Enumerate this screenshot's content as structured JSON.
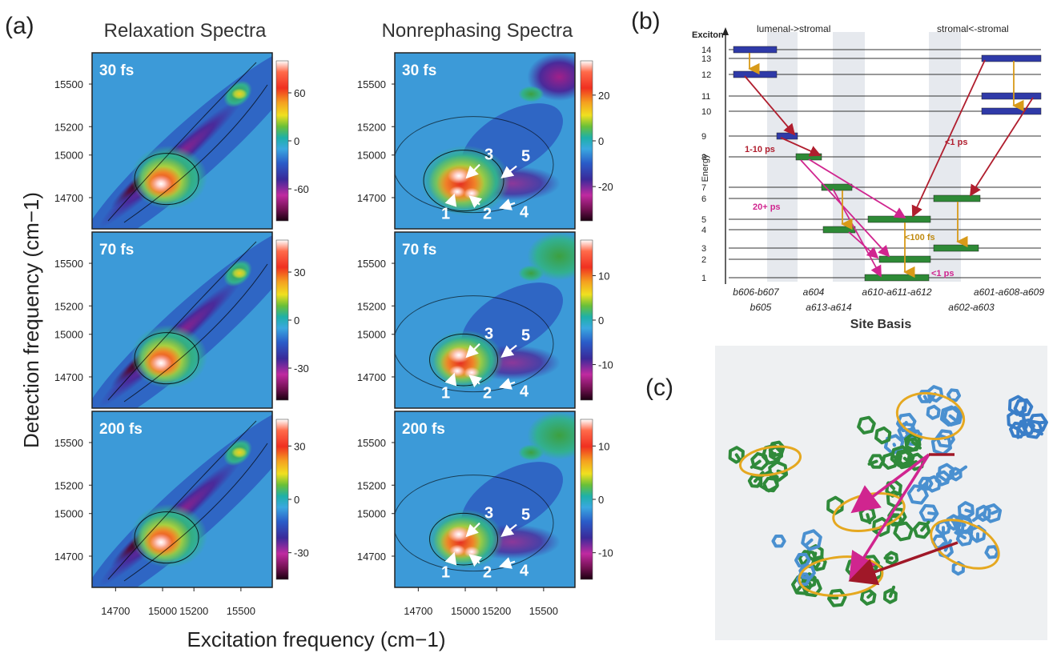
{
  "figure": {
    "panel_a_label": "(a)",
    "panel_b_label": "(b)",
    "panel_c_label": "(c)"
  },
  "chart_data": [
    {
      "type": "heatmap",
      "id": "relaxation",
      "title": "Relaxation Spectra",
      "xlabel": "Excitation frequency (cm−1)",
      "ylabel": "Detection frequency (cm−1)",
      "xlim": [
        14550,
        15700
      ],
      "ylim": [
        14480,
        15720
      ],
      "x_ticks": [
        14700,
        15000,
        15200,
        15500
      ],
      "y_ticks": [
        14700,
        15000,
        15200,
        15500
      ],
      "panels": [
        {
          "time": "30 fs",
          "colorbar_ticks": [
            "60",
            "0",
            "-60"
          ],
          "colorbar_max": 100
        },
        {
          "time": "70 fs",
          "colorbar_ticks": [
            "30",
            "0",
            "-30"
          ],
          "colorbar_max": 50
        },
        {
          "time": "200 fs",
          "colorbar_ticks": [
            "30",
            "0",
            "-30"
          ],
          "colorbar_max": 45
        }
      ]
    },
    {
      "type": "heatmap",
      "id": "nonrephasing",
      "title": "Nonrephasing Spectra",
      "xlim": [
        14550,
        15700
      ],
      "ylim": [
        14480,
        15720
      ],
      "x_ticks": [
        14700,
        15000,
        15200,
        15500
      ],
      "y_ticks": [
        14700,
        15000,
        15200,
        15500
      ],
      "panels": [
        {
          "time": "30 fs",
          "colorbar_ticks": [
            "20",
            "0",
            "-20"
          ],
          "colorbar_max": 35
        },
        {
          "time": "70 fs",
          "colorbar_ticks": [
            "10",
            "0",
            "-10"
          ],
          "colorbar_max": 18
        },
        {
          "time": "200 fs",
          "colorbar_ticks": [
            "10",
            "0",
            "-10"
          ],
          "colorbar_max": 15
        }
      ],
      "peak_labels": [
        "1",
        "2",
        "3",
        "4",
        "5"
      ]
    },
    {
      "type": "diagram",
      "id": "energy_levels",
      "y_axis_top_label": "Exciton",
      "y_axis_label": "Energy",
      "xlabel": "Site Basis",
      "header_left": "lumenal->stromal",
      "header_right": "stromal<-stromal",
      "levels": [
        "14",
        "13",
        "12",
        "11",
        "10",
        "9",
        "8",
        "7",
        "6",
        "5",
        "4",
        "3",
        "2",
        "1"
      ],
      "sites_top_row": [
        "b606-b607",
        "a604",
        "a610-a611-a612",
        "a601-a608-a609"
      ],
      "sites_bottom_row": [
        "b605",
        "a613-a614",
        "a602-a603"
      ],
      "timescales": [
        {
          "label": "1-10 ps",
          "color": "#b01e2e"
        },
        {
          "label": "<1 ps",
          "color": "#b01e2e"
        },
        {
          "label": "20+ ps",
          "color": "#d0258f"
        },
        {
          "label": "<100 fs",
          "color": "#c08a10"
        },
        {
          "label": "<1 ps",
          "color": "#d0258f"
        }
      ]
    }
  ]
}
